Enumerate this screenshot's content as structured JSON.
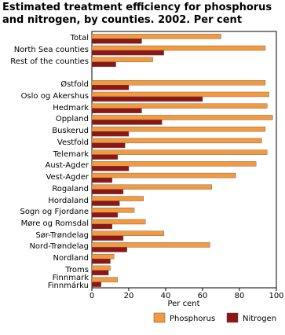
{
  "chart_data": {
    "type": "hbar",
    "title": "Estimated treatment efficiency for phosphorus and nitrogen, by counties. 2002. Per cent",
    "xlabel": "Per cent",
    "categories": [
      "Total",
      "North Sea counties",
      "Rest of the counties",
      null,
      "Østfold",
      "Oslo og Akershus",
      "Hedmark",
      "Oppland",
      "Buskerud",
      "Vestfold",
      "Telemark",
      "Aust-Agder",
      "Vest-Agder",
      "Rogaland",
      "Hordaland",
      "Sogn og Fjordane",
      "Møre og Romsdal",
      "Sør-Trøndelag",
      "Nord-Trøndelag",
      "Nordland",
      "Troms",
      "Finnmark\nFinnmárku"
    ],
    "series": [
      {
        "name": "Phosphorus",
        "color": "#f39a3e",
        "values": [
          70,
          94,
          33,
          null,
          94,
          96,
          95,
          98,
          94,
          92,
          95,
          89,
          78,
          65,
          28,
          23,
          29,
          39,
          64,
          12,
          10,
          14
        ]
      },
      {
        "name": "Nitrogen",
        "color": "#8e1616",
        "values": [
          27,
          39,
          13,
          null,
          20,
          60,
          27,
          38,
          20,
          18,
          14,
          20,
          11,
          17,
          15,
          14,
          11,
          17,
          19,
          10,
          9,
          5
        ]
      }
    ],
    "xlim": [
      0,
      100
    ],
    "xticks": [
      0,
      20,
      40,
      60,
      80,
      100
    ],
    "grid": false
  }
}
